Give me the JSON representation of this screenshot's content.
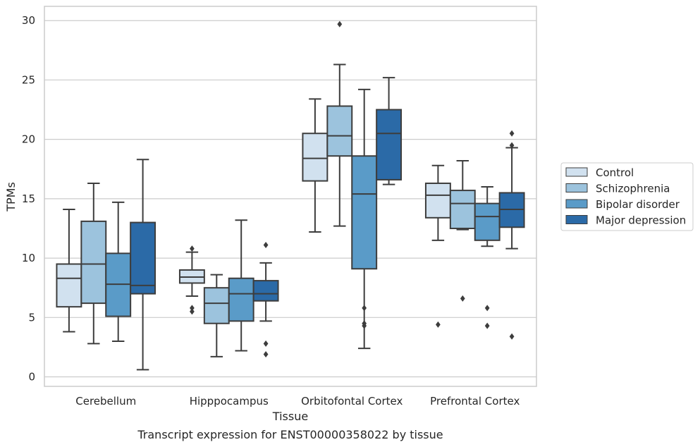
{
  "caption": "Transcript expression for ENST00000358022 by tissue",
  "chart_data": {
    "type": "box",
    "xlabel": "Tissue",
    "ylabel": "TPMs",
    "ylim": [
      -0.8,
      31.2
    ],
    "yticks": [
      0,
      5,
      10,
      15,
      20,
      25,
      30
    ],
    "grid": "horizontal",
    "legend_position": "right",
    "categories": [
      "Cerebellum",
      "Hipppocampus",
      "Orbitofontal Cortex",
      "Prefrontal Cortex"
    ],
    "series": [
      {
        "name": "Control",
        "color": "#d1e1ef",
        "boxes": [
          {
            "q1": 5.9,
            "median": 8.3,
            "q3": 9.5,
            "whisker_low": 3.8,
            "whisker_high": 14.1,
            "outliers": []
          },
          {
            "q1": 7.9,
            "median": 8.4,
            "q3": 9.0,
            "whisker_low": 6.8,
            "whisker_high": 10.5,
            "outliers": [
              10.8,
              5.8,
              5.5
            ]
          },
          {
            "q1": 16.5,
            "median": 18.4,
            "q3": 20.5,
            "whisker_low": 12.2,
            "whisker_high": 23.4,
            "outliers": []
          },
          {
            "q1": 13.4,
            "median": 15.3,
            "q3": 16.3,
            "whisker_low": 11.5,
            "whisker_high": 17.8,
            "outliers": [
              4.4
            ]
          }
        ]
      },
      {
        "name": "Schizophrenia",
        "color": "#9cc3dd",
        "boxes": [
          {
            "q1": 6.2,
            "median": 9.5,
            "q3": 13.1,
            "whisker_low": 2.8,
            "whisker_high": 16.3,
            "outliers": []
          },
          {
            "q1": 4.5,
            "median": 6.2,
            "q3": 7.5,
            "whisker_low": 1.7,
            "whisker_high": 8.6,
            "outliers": []
          },
          {
            "q1": 18.6,
            "median": 20.3,
            "q3": 22.8,
            "whisker_low": 12.7,
            "whisker_high": 26.3,
            "outliers": [
              29.7
            ]
          },
          {
            "q1": 12.5,
            "median": 14.6,
            "q3": 15.7,
            "whisker_low": 12.4,
            "whisker_high": 18.2,
            "outliers": [
              6.6
            ]
          }
        ]
      },
      {
        "name": "Bipolar disorder",
        "color": "#5a9bc8",
        "boxes": [
          {
            "q1": 5.1,
            "median": 7.8,
            "q3": 10.4,
            "whisker_low": 3.0,
            "whisker_high": 14.7,
            "outliers": []
          },
          {
            "q1": 4.7,
            "median": 7.0,
            "q3": 8.3,
            "whisker_low": 2.2,
            "whisker_high": 13.2,
            "outliers": []
          },
          {
            "q1": 9.1,
            "median": 15.4,
            "q3": 18.6,
            "whisker_low": 2.4,
            "whisker_high": 24.2,
            "outliers": [
              5.8,
              4.5,
              4.3
            ]
          },
          {
            "q1": 11.5,
            "median": 13.5,
            "q3": 14.6,
            "whisker_low": 11.0,
            "whisker_high": 16.0,
            "outliers": [
              5.8,
              4.3
            ]
          }
        ]
      },
      {
        "name": "Major depression",
        "color": "#2b6aa7",
        "boxes": [
          {
            "q1": 7.0,
            "median": 7.7,
            "q3": 13.0,
            "whisker_low": 0.6,
            "whisker_high": 18.3,
            "outliers": []
          },
          {
            "q1": 6.4,
            "median": 7.0,
            "q3": 8.1,
            "whisker_low": 4.7,
            "whisker_high": 9.6,
            "outliers": [
              11.1,
              2.8,
              1.9
            ]
          },
          {
            "q1": 16.6,
            "median": 20.5,
            "q3": 22.5,
            "whisker_low": 16.2,
            "whisker_high": 25.2,
            "outliers": []
          },
          {
            "q1": 12.6,
            "median": 14.1,
            "q3": 15.5,
            "whisker_low": 10.8,
            "whisker_high": 19.3,
            "outliers": [
              20.5,
              19.5,
              3.4
            ]
          }
        ]
      }
    ]
  }
}
